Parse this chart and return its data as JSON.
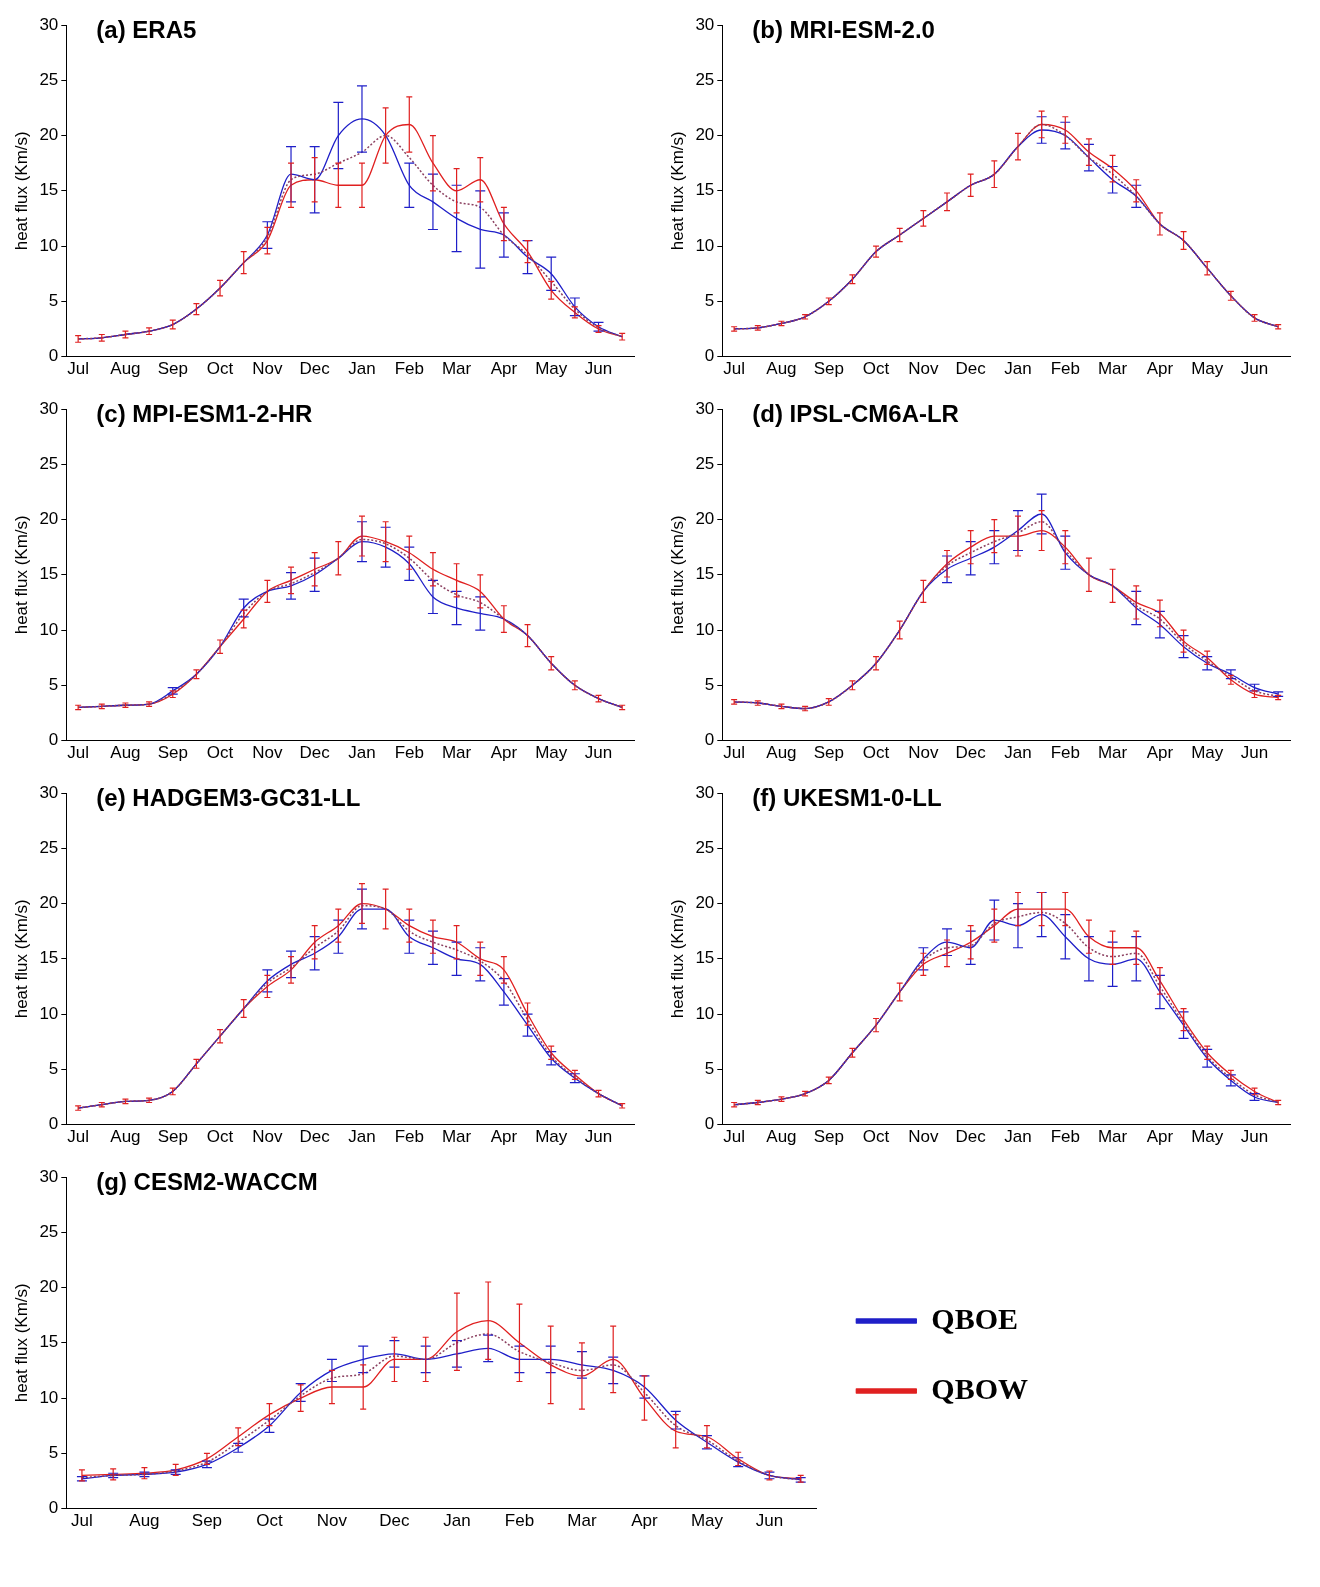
{
  "chart_data": [
    {
      "type": "line",
      "title": "(a) ERA5",
      "ylabel": "heat flux (Km/s)",
      "ylim": [
        0,
        30
      ],
      "yticks": [
        0,
        5,
        10,
        15,
        20,
        25,
        30
      ],
      "categories": [
        "Jul",
        null,
        "Aug",
        null,
        "Sep",
        null,
        "Oct",
        null,
        "Nov",
        null,
        "Dec",
        null,
        "Jan",
        null,
        "Feb",
        null,
        "Mar",
        null,
        "Apr",
        null,
        "May",
        null,
        "Jun",
        null
      ],
      "series": [
        {
          "color": "#8b4060",
          "line_style": "dotted",
          "values": [
            1.6,
            1.7,
            2.0,
            2.3,
            2.9,
            4.3,
            6.2,
            8.5,
            10.8,
            16,
            16.5,
            17.5,
            18.5,
            20,
            18,
            15.5,
            14,
            13.5,
            11,
            9.2,
            6.8,
            4.3,
            2.6,
            1.8
          ]
        },
        {
          "color": "#1f1fc8",
          "values": [
            1.6,
            1.7,
            2.0,
            2.3,
            2.9,
            4.3,
            6.2,
            8.5,
            11,
            16.5,
            16,
            20,
            21.5,
            20,
            15.5,
            14,
            12.5,
            11.5,
            11,
            9,
            7.5,
            4.5,
            2.7,
            1.8
          ],
          "errors": [
            null,
            null,
            null,
            null,
            null,
            null,
            null,
            null,
            1.2,
            2.5,
            3,
            3,
            3,
            null,
            2,
            2.5,
            3,
            3.5,
            2,
            1.5,
            1.5,
            0.8,
            0.4,
            null
          ]
        },
        {
          "color": "#e02020",
          "values": [
            1.6,
            1.7,
            2.0,
            2.3,
            2.9,
            4.3,
            6.2,
            8.5,
            10.5,
            15.5,
            16,
            15.5,
            15.5,
            20,
            21,
            17.5,
            15,
            16,
            12,
            9.5,
            6,
            4,
            2.5,
            1.8
          ],
          "errors": [
            0.3,
            0.3,
            0.3,
            0.3,
            0.4,
            0.5,
            0.7,
            1,
            1.2,
            2,
            2,
            2,
            2,
            2.5,
            2.5,
            2.5,
            2,
            2,
            1.5,
            1,
            0.8,
            0.5,
            0.3,
            0.3
          ]
        }
      ]
    },
    {
      "type": "line",
      "title": "(b) MRI-ESM-2.0",
      "ylabel": "heat flux (Km/s)",
      "ylim": [
        0,
        30
      ],
      "yticks": [
        0,
        5,
        10,
        15,
        20,
        25,
        30
      ],
      "categories": [
        "Jul",
        null,
        "Aug",
        null,
        "Sep",
        null,
        "Oct",
        null,
        "Nov",
        null,
        "Dec",
        null,
        "Jan",
        null,
        "Feb",
        null,
        "Mar",
        null,
        "Apr",
        null,
        "May",
        null,
        "Jun",
        null
      ],
      "series": [
        {
          "color": "#8b4060",
          "line_style": "dotted",
          "values": [
            2.5,
            2.6,
            3.0,
            3.6,
            5,
            7,
            9.5,
            11,
            12.5,
            14,
            15.5,
            16.5,
            19,
            21,
            20,
            18,
            16.5,
            14.5,
            12,
            10.5,
            8,
            5.5,
            3.5,
            2.7
          ]
        },
        {
          "color": "#1f1fc8",
          "values": [
            2.5,
            2.6,
            3.0,
            3.6,
            5,
            7,
            9.5,
            11,
            12.5,
            14,
            15.5,
            16.5,
            19,
            20.5,
            20,
            18,
            16,
            14.5,
            12,
            10.5,
            8,
            5.5,
            3.5,
            2.7
          ],
          "errors": [
            null,
            null,
            null,
            null,
            null,
            null,
            null,
            null,
            null,
            null,
            null,
            null,
            null,
            1.2,
            1.2,
            1.2,
            1.2,
            1,
            null,
            null,
            null,
            null,
            null,
            null
          ]
        },
        {
          "color": "#e02020",
          "values": [
            2.5,
            2.6,
            3.0,
            3.6,
            5,
            7,
            9.5,
            11,
            12.5,
            14,
            15.5,
            16.5,
            19,
            21,
            20.5,
            18.5,
            17,
            15,
            12,
            10.5,
            8,
            5.5,
            3.5,
            2.7
          ],
          "errors": [
            0.2,
            0.2,
            0.2,
            0.2,
            0.3,
            0.4,
            0.5,
            0.6,
            0.7,
            0.8,
            1,
            1.2,
            1.2,
            1.2,
            1.2,
            1.2,
            1.2,
            1,
            1,
            0.8,
            0.6,
            0.4,
            0.3,
            0.2
          ]
        }
      ]
    },
    {
      "type": "line",
      "title": "(c) MPI-ESM1-2-HR",
      "ylabel": "heat flux (Km/s)",
      "ylim": [
        0,
        30
      ],
      "yticks": [
        0,
        5,
        10,
        15,
        20,
        25,
        30
      ],
      "categories": [
        "Jul",
        null,
        "Aug",
        null,
        "Sep",
        null,
        "Oct",
        null,
        "Nov",
        null,
        "Dec",
        null,
        "Jan",
        null,
        "Feb",
        null,
        "Mar",
        null,
        "Apr",
        null,
        "May",
        null,
        "Jun",
        null
      ],
      "series": [
        {
          "color": "#8b4060",
          "line_style": "dotted",
          "values": [
            3,
            3.1,
            3.2,
            3.3,
            4.3,
            6,
            8.5,
            11.5,
            13.5,
            14.2,
            15.2,
            16.5,
            18.2,
            17.8,
            16.5,
            14.5,
            13.2,
            12.5,
            11,
            9.5,
            7,
            5,
            3.8,
            3
          ]
        },
        {
          "color": "#1f1fc8",
          "values": [
            3,
            3.1,
            3.2,
            3.3,
            4.5,
            6,
            8.5,
            12,
            13.5,
            14,
            15,
            16.5,
            18,
            17.5,
            16,
            13,
            12,
            11.5,
            11,
            9.5,
            7,
            5,
            3.8,
            3
          ],
          "errors": [
            null,
            null,
            null,
            null,
            0.3,
            null,
            null,
            0.8,
            null,
            1.2,
            1.5,
            null,
            1.8,
            1.8,
            1.5,
            1.5,
            1.5,
            1.5,
            null,
            null,
            null,
            null,
            null,
            null
          ]
        },
        {
          "color": "#e02020",
          "values": [
            3,
            3.1,
            3.2,
            3.3,
            4.2,
            6,
            8.5,
            11,
            13.5,
            14.5,
            15.5,
            16.5,
            18.5,
            18,
            17,
            15.5,
            14.5,
            13.5,
            11,
            9.5,
            7,
            5,
            3.8,
            3
          ],
          "errors": [
            0.2,
            0.2,
            0.2,
            0.2,
            0.3,
            0.4,
            0.6,
            0.8,
            1,
            1.2,
            1.5,
            1.5,
            1.8,
            1.8,
            1.5,
            1.5,
            1.5,
            1.5,
            1.2,
            1,
            0.6,
            0.4,
            0.3,
            0.2
          ]
        }
      ]
    },
    {
      "type": "line",
      "title": "(d) IPSL-CM6A-LR",
      "ylabel": "heat flux (Km/s)",
      "ylim": [
        0,
        30
      ],
      "yticks": [
        0,
        5,
        10,
        15,
        20,
        25,
        30
      ],
      "categories": [
        "Jul",
        null,
        "Aug",
        null,
        "Sep",
        null,
        "Oct",
        null,
        "Nov",
        null,
        "Dec",
        null,
        "Jan",
        null,
        "Feb",
        null,
        "Mar",
        null,
        "Apr",
        null,
        "May",
        null,
        "Jun",
        null
      ],
      "series": [
        {
          "color": "#8b4060",
          "line_style": "dotted",
          "values": [
            3.5,
            3.4,
            3.1,
            2.9,
            3.5,
            5,
            7,
            10,
            13.5,
            15.8,
            17,
            18,
            18.8,
            19.8,
            17.2,
            15,
            14,
            12.2,
            11,
            8.8,
            7.2,
            5.8,
            4.5,
            4
          ]
        },
        {
          "color": "#1f1fc8",
          "values": [
            3.5,
            3.4,
            3.1,
            2.9,
            3.5,
            5,
            7,
            10,
            13.5,
            15.5,
            16.5,
            17.5,
            19,
            20.5,
            17,
            15,
            14,
            12,
            10.5,
            8.5,
            7,
            6,
            4.8,
            4.2
          ],
          "errors": [
            null,
            null,
            null,
            null,
            null,
            null,
            null,
            null,
            null,
            1.2,
            1.5,
            1.5,
            1.8,
            1.8,
            1.5,
            null,
            null,
            1.5,
            1.2,
            1,
            0.6,
            0.4,
            0.3,
            0.2
          ]
        },
        {
          "color": "#e02020",
          "values": [
            3.5,
            3.4,
            3.1,
            2.9,
            3.5,
            5,
            7,
            10,
            13.5,
            16,
            17.5,
            18.5,
            18.5,
            19,
            17.5,
            15,
            14,
            12.5,
            11.5,
            9,
            7.5,
            5.5,
            4.2,
            3.9
          ],
          "errors": [
            0.2,
            0.2,
            0.2,
            0.2,
            0.3,
            0.4,
            0.6,
            0.8,
            1,
            1.2,
            1.5,
            1.5,
            1.8,
            1.8,
            1.5,
            1.5,
            1.5,
            1.5,
            1.2,
            1,
            0.6,
            0.4,
            0.3,
            0.2
          ]
        }
      ]
    },
    {
      "type": "line",
      "title": "(e) HADGEM3-GC31-LL",
      "ylabel": "heat flux (Km/s)",
      "ylim": [
        0,
        30
      ],
      "yticks": [
        0,
        5,
        10,
        15,
        20,
        25,
        30
      ],
      "categories": [
        "Jul",
        null,
        "Aug",
        null,
        "Sep",
        null,
        "Oct",
        null,
        "Nov",
        null,
        "Dec",
        null,
        "Jan",
        null,
        "Feb",
        null,
        "Mar",
        null,
        "Apr",
        null,
        "May",
        null,
        "Jun",
        null
      ],
      "series": [
        {
          "color": "#8b4060",
          "line_style": "dotted",
          "values": [
            1.5,
            1.8,
            2.1,
            2.2,
            3,
            5.5,
            8,
            10.5,
            12.8,
            14.2,
            16,
            17.5,
            19.8,
            19.5,
            17.5,
            16.5,
            15.8,
            14.8,
            13,
            9.5,
            6.2,
            4.3,
            2.8,
            1.7
          ]
        },
        {
          "color": "#1f1fc8",
          "values": [
            1.5,
            1.8,
            2.1,
            2.2,
            3,
            5.5,
            8,
            10.5,
            13,
            14.5,
            15.5,
            17,
            19.5,
            19.5,
            17,
            16,
            15,
            14.5,
            12,
            9,
            6,
            4.2,
            2.8,
            1.7
          ],
          "errors": [
            null,
            null,
            null,
            null,
            null,
            null,
            null,
            null,
            1,
            1.2,
            1.5,
            1.5,
            1.8,
            null,
            1.5,
            1.5,
            1.5,
            1.5,
            1.2,
            1,
            0.6,
            0.4,
            null,
            null
          ]
        },
        {
          "color": "#e02020",
          "values": [
            1.5,
            1.8,
            2.1,
            2.2,
            3,
            5.5,
            8,
            10.5,
            12.5,
            14,
            16.5,
            18,
            20,
            19.5,
            18,
            17,
            16.5,
            15,
            14,
            10,
            6.5,
            4.5,
            2.8,
            1.7
          ],
          "errors": [
            0.2,
            0.2,
            0.2,
            0.2,
            0.3,
            0.4,
            0.6,
            0.8,
            1,
            1.2,
            1.5,
            1.5,
            1.8,
            1.8,
            1.5,
            1.5,
            1.5,
            1.5,
            1.2,
            1,
            0.6,
            0.4,
            0.3,
            0.2
          ]
        }
      ]
    },
    {
      "type": "line",
      "title": "(f) UKESM1-0-LL",
      "ylabel": "heat flux (Km/s)",
      "ylim": [
        0,
        30
      ],
      "yticks": [
        0,
        5,
        10,
        15,
        20,
        25,
        30
      ],
      "categories": [
        "Jul",
        null,
        "Aug",
        null,
        "Sep",
        null,
        "Oct",
        null,
        "Nov",
        null,
        "Dec",
        null,
        "Jan",
        null,
        "Feb",
        null,
        "Mar",
        null,
        "Apr",
        null,
        "May",
        null,
        "Jun",
        null
      ],
      "series": [
        {
          "color": "#8b4060",
          "line_style": "dotted",
          "values": [
            1.8,
            2,
            2.3,
            2.8,
            4,
            6.5,
            9,
            12,
            14.8,
            16,
            16.2,
            18.2,
            18.8,
            19.2,
            18.2,
            16,
            15.2,
            15.5,
            12.5,
            9.2,
            6.2,
            4.2,
            2.7,
            2
          ]
        },
        {
          "color": "#1f1fc8",
          "values": [
            1.8,
            2,
            2.3,
            2.8,
            4,
            6.5,
            9,
            12,
            15,
            16.5,
            16,
            18.5,
            18,
            19,
            17,
            15,
            14.5,
            15,
            12,
            9,
            6,
            4,
            2.5,
            2
          ],
          "errors": [
            null,
            null,
            null,
            null,
            null,
            null,
            null,
            null,
            1,
            1.2,
            1.5,
            1.8,
            2,
            2,
            2,
            2,
            2,
            2,
            1.5,
            1.2,
            0.8,
            0.5,
            0.3,
            null
          ]
        },
        {
          "color": "#e02020",
          "values": [
            1.8,
            2,
            2.3,
            2.8,
            4,
            6.5,
            9,
            12,
            14.5,
            15.5,
            16.5,
            18,
            19.5,
            19.5,
            19.5,
            17,
            16,
            16,
            13,
            9.5,
            6.5,
            4.5,
            3,
            2
          ],
          "errors": [
            0.2,
            0.2,
            0.2,
            0.2,
            0.3,
            0.4,
            0.6,
            0.8,
            1,
            1.2,
            1.5,
            1.5,
            1.5,
            1.5,
            1.5,
            1.5,
            1.5,
            1.5,
            1.2,
            1,
            0.6,
            0.4,
            0.3,
            0.2
          ]
        }
      ]
    },
    {
      "type": "line",
      "title": "(g) CESM2-WACCM",
      "ylabel": "heat flux (Km/s)",
      "ylim": [
        0,
        30
      ],
      "yticks": [
        0,
        5,
        10,
        15,
        20,
        25,
        30
      ],
      "legend": "right",
      "categories": [
        "Jul",
        null,
        "Aug",
        null,
        "Sep",
        null,
        "Oct",
        null,
        "Nov",
        null,
        "Dec",
        null,
        "Jan",
        null,
        "Feb",
        null,
        "Mar",
        null,
        "Apr",
        null,
        "May",
        null,
        "Jun",
        null
      ],
      "series": [
        {
          "color": "#8b4060",
          "line_style": "dotted",
          "values": [
            2.8,
            3,
            3.1,
            3.4,
            4.2,
            6,
            8,
            10.2,
            11.8,
            12.2,
            13.8,
            13.5,
            15,
            15.8,
            14.2,
            13.2,
            12.5,
            13,
            10.5,
            7.5,
            6.2,
            4.3,
            3,
            2.6
          ]
        },
        {
          "name": "QBOE",
          "color": "#1f1fc8",
          "values": [
            2.7,
            3,
            3.1,
            3.3,
            4,
            5.5,
            7.5,
            10.5,
            12.5,
            13.5,
            14,
            13.5,
            14,
            14.5,
            13.5,
            13.5,
            13,
            12.5,
            11,
            8,
            6,
            4.2,
            3,
            2.6
          ],
          "errors": [
            0.2,
            0.2,
            0.2,
            0.2,
            0.3,
            0.4,
            0.6,
            0.8,
            1,
            1.2,
            1.2,
            1.2,
            1.2,
            1.2,
            1.2,
            1.2,
            1.2,
            1.2,
            1,
            0.8,
            0.6,
            0.4,
            0.3,
            0.2
          ]
        },
        {
          "name": "QBOW",
          "color": "#e02020",
          "values": [
            3,
            3.1,
            3.2,
            3.5,
            4.5,
            6.5,
            8.5,
            10,
            11,
            11,
            13.5,
            13.5,
            16,
            17,
            15,
            13,
            12,
            13.5,
            10,
            7,
            6.5,
            4.5,
            3,
            2.7
          ],
          "errors": [
            0.5,
            0.5,
            0.5,
            0.5,
            0.5,
            0.8,
            1,
            1.2,
            1.5,
            2,
            2,
            2,
            3.5,
            3.5,
            3.5,
            3.5,
            3,
            3,
            2,
            1.5,
            1,
            0.6,
            0.4,
            0.3
          ]
        }
      ]
    }
  ]
}
